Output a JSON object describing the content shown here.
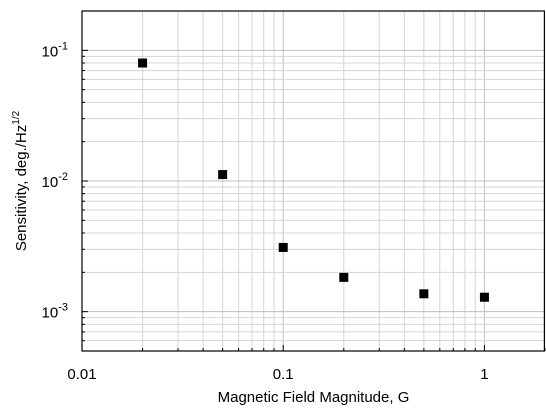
{
  "chart_data": {
    "type": "scatter",
    "title": "",
    "xlabel": "Magnetic Field Magnitude, G",
    "ylabel": "Sensitivity, deg./Hz",
    "ylabel_superscript": "1/2",
    "x_scale": "log",
    "y_scale": "log",
    "xlim": [
      0.01,
      2
    ],
    "ylim": [
      0.0005,
      0.2
    ],
    "x_ticks": [
      {
        "value": 0.01,
        "label": "0.01"
      },
      {
        "value": 0.1,
        "label": "0.1"
      },
      {
        "value": 1,
        "label": "1"
      }
    ],
    "y_ticks": [
      {
        "value": 0.001,
        "base": "10",
        "exp": "-3"
      },
      {
        "value": 0.01,
        "base": "10",
        "exp": "-2"
      },
      {
        "value": 0.1,
        "base": "10",
        "exp": "-1"
      }
    ],
    "grid": true,
    "legend": "none",
    "marker": "square",
    "marker_color": "#000000",
    "series": [
      {
        "x": [
          0.02,
          0.05,
          0.1,
          0.2,
          0.5,
          1.0
        ],
        "y": [
          0.08,
          0.0112,
          0.0031,
          0.00183,
          0.00137,
          0.00129
        ]
      }
    ]
  }
}
